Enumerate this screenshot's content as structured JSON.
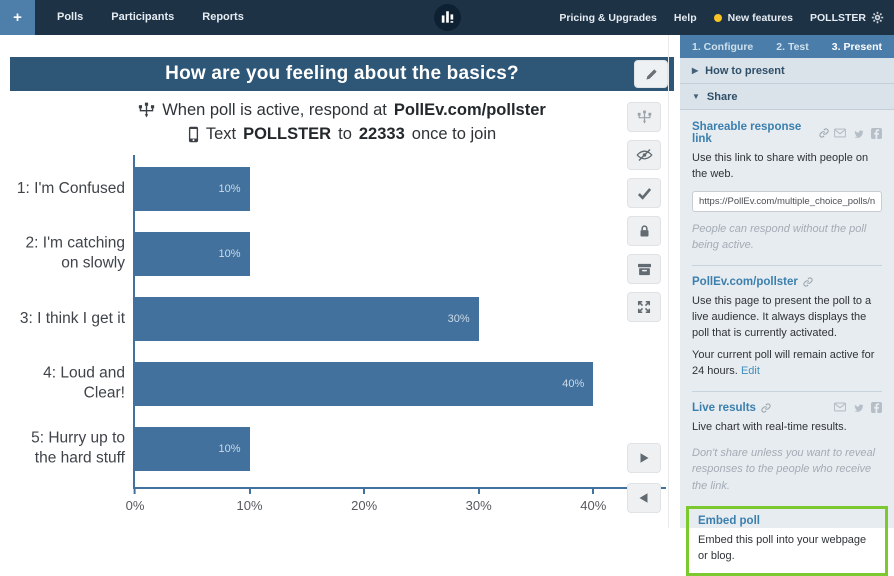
{
  "nav": {
    "add_button": "+",
    "items": [
      "Polls",
      "Participants",
      "Reports"
    ],
    "pricing": "Pricing & Upgrades",
    "help": "Help",
    "new_features": "New features",
    "account": "POLLSTER"
  },
  "poll": {
    "title": "How are you feeling about the basics?",
    "join_instruction": {
      "prefix": "When poll is active, respond at",
      "url": "PollEv.com/pollster"
    },
    "text_instruction": {
      "prefix": "Text",
      "keyword": "POLLSTER",
      "mid": "to",
      "number": "22333",
      "suffix": "once to join"
    }
  },
  "chart_data": {
    "type": "bar",
    "orientation": "horizontal",
    "title": "How are you feeling about the basics?",
    "categories": [
      "1: I'm Confused",
      "2: I'm catching on slowly",
      "3: I think I get it",
      "4: Loud and Clear!",
      "5: Hurry up to the hard stuff"
    ],
    "values": [
      10,
      10,
      30,
      40,
      10
    ],
    "value_labels": [
      "10%",
      "10%",
      "30%",
      "40%",
      "10%"
    ],
    "x_ticks": [
      "0%",
      "10%",
      "20%",
      "30%",
      "40%"
    ],
    "x_tick_values": [
      0,
      10,
      20,
      30,
      40
    ],
    "xlim": [
      0,
      46
    ],
    "bar_color": "#41719c",
    "grid": false,
    "legend": "none"
  },
  "toolbar": {
    "buttons": [
      "edit",
      "response-settings",
      "hide-instructions",
      "correctness",
      "lock",
      "archive",
      "fullscreen",
      "next-slide",
      "previous-slide"
    ]
  },
  "sidebar": {
    "tabs": [
      {
        "label": "1. Configure",
        "active": false
      },
      {
        "label": "2. Test",
        "active": false
      },
      {
        "label": "3. Present",
        "active": true
      }
    ],
    "how_to_present_label": "How to present",
    "share_label": "Share",
    "share": {
      "shareable": {
        "heading": "Shareable response link",
        "desc": "Use this link to share with people on the web.",
        "link_value": "https://PollEv.com/multiple_choice_polls/nWpponsV",
        "note": "People can respond without the poll being active."
      },
      "pollev_page": {
        "heading": "PollEv.com/pollster",
        "desc": "Use this page to present the poll to a live audience. It always displays the poll that is currently activated.",
        "active_note": "Your current poll will remain active for 24 hours.",
        "edit_label": "Edit"
      },
      "live_results": {
        "heading": "Live results",
        "desc": "Live chart with real-time results.",
        "note": "Don't share unless you want to reveal responses to the people who receive the link."
      },
      "embed": {
        "heading": "Embed poll",
        "desc": "Embed this poll into your webpage or blog."
      }
    }
  },
  "colors": {
    "nav_bg": "#1e3246",
    "title_bar_bg": "#2d5677",
    "bar_blue": "#41719c",
    "sidebar_tab_bg": "#4a7da9",
    "heading_blue": "#3b7fae",
    "highlight_green": "#7cc82f",
    "new_features_dot": "#f7c325"
  }
}
